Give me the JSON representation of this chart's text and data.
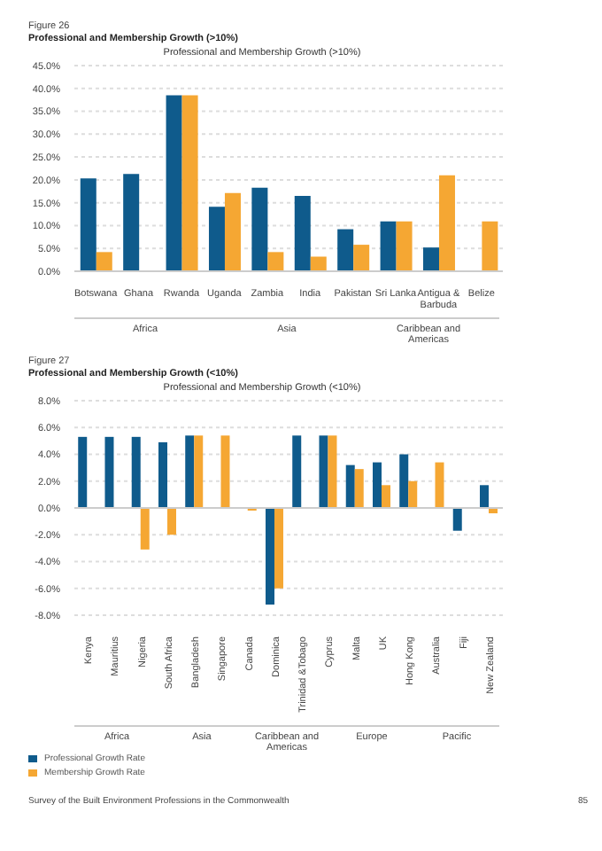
{
  "chart_data": [
    {
      "type": "bar",
      "title": "Professional and Membership Growth (>10%)",
      "annotations": [
        "Figure 26",
        "Professional and Membership Growth (>10%)",
        "Africa",
        "Asia",
        "Caribbean and Americas"
      ],
      "categories": [
        "Botswana",
        "Ghana",
        "Rwanda",
        "Uganda",
        "Zambia",
        "India",
        "Pakistan",
        "Sri Lanka",
        "Antigua & Barbuda",
        "Belize"
      ],
      "series": [
        {
          "color": "#0f5b8c",
          "values": [
            20.3,
            21.3,
            38.5,
            14.1,
            18.3,
            16.5,
            9.2,
            10.9,
            5.2,
            null
          ]
        },
        {
          "color": "#f5a733",
          "values": [
            4.2,
            null,
            38.5,
            17.1,
            4.2,
            3.2,
            5.8,
            10.9,
            21.0,
            10.9
          ]
        }
      ],
      "ylim": [
        0,
        45
      ],
      "yticks": [
        {
          "value": 0,
          "label": "0.0%"
        },
        {
          "value": 5,
          "label": "5.0%"
        },
        {
          "value": 10,
          "label": "10.0%"
        },
        {
          "value": 15,
          "label": "15.0%"
        },
        {
          "value": 20,
          "label": "20.0%"
        },
        {
          "value": 25,
          "label": "25.0%"
        },
        {
          "value": 30,
          "label": "30.0%"
        },
        {
          "value": 35,
          "label": "35.0%"
        },
        {
          "value": 40,
          "label": "40.0%"
        },
        {
          "value": 45,
          "label": "45.0%"
        }
      ],
      "grid": "y"
    },
    {
      "type": "bar",
      "title": "Professional and Membership Growth (<10%)",
      "annotations": [
        "Figure 27",
        "Professional and Membership Growth (<10%)",
        "Africa",
        "Asia",
        "Caribbean and Americas",
        "Europe",
        "Pacific",
        "Survey of the Built Environment Professions in the Commonwealth",
        "85"
      ],
      "categories": [
        "Kenya",
        "Mauritius",
        "Nigeria",
        "South Africa",
        "Bangladesh",
        "Singapore",
        "Canada",
        "Dominica",
        "Trinidad &Tobago",
        "Cyprus",
        "Malta",
        "UK",
        "Hong Kong",
        "Australia",
        "Fiji",
        "New Zealand"
      ],
      "series": [
        {
          "name": "Professional Growth Rate",
          "color": "#0f5b8c",
          "values": [
            5.3,
            5.3,
            5.3,
            4.9,
            5.4,
            null,
            null,
            -7.2,
            5.4,
            5.4,
            3.2,
            3.4,
            4.0,
            null,
            -1.7,
            1.7
          ]
        },
        {
          "name": "Membership Growth Rate",
          "color": "#f5a733",
          "values": [
            null,
            null,
            -3.1,
            -2.0,
            5.4,
            5.4,
            -0.2,
            -6.0,
            null,
            5.4,
            2.9,
            1.7,
            2.0,
            3.4,
            null,
            -0.4
          ]
        }
      ],
      "ylim": [
        -8,
        8
      ],
      "yticks": [
        {
          "value": -8,
          "label": "-8.0%"
        },
        {
          "value": -6,
          "label": "-6.0%"
        },
        {
          "value": -4,
          "label": "-4.0%"
        },
        {
          "value": -2,
          "label": "-2.0%"
        },
        {
          "value": 0,
          "label": "0.0%"
        },
        {
          "value": 2,
          "label": "2.0%"
        },
        {
          "value": 4,
          "label": "4.0%"
        },
        {
          "value": 6,
          "label": "6.0%"
        },
        {
          "value": 8,
          "label": "8.0%"
        }
      ],
      "grid": "y",
      "legend": "bottom left"
    }
  ]
}
